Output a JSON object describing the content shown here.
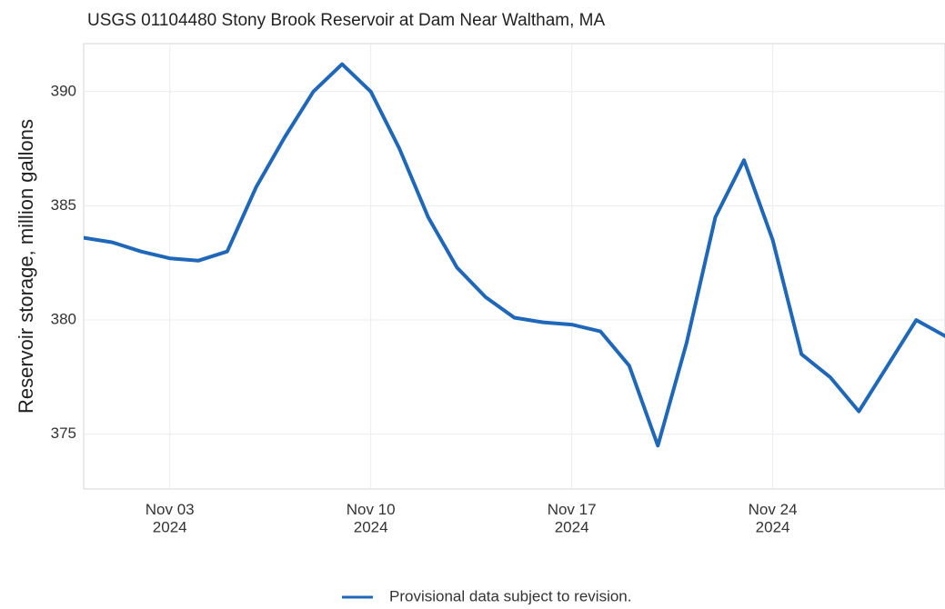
{
  "chart_data": {
    "type": "line",
    "title": "USGS 01104480 Stony Brook Reservoir at Dam Near Waltham, MA",
    "y_label": "Reservoir storage, million gallons",
    "x": [
      "2024-10-31",
      "2024-11-01",
      "2024-11-02",
      "2024-11-03",
      "2024-11-04",
      "2024-11-05",
      "2024-11-06",
      "2024-11-07",
      "2024-11-08",
      "2024-11-09",
      "2024-11-10",
      "2024-11-11",
      "2024-11-12",
      "2024-11-13",
      "2024-11-14",
      "2024-11-15",
      "2024-11-16",
      "2024-11-17",
      "2024-11-18",
      "2024-11-19",
      "2024-11-20",
      "2024-11-21",
      "2024-11-22",
      "2024-11-23",
      "2024-11-24",
      "2024-11-25",
      "2024-11-26",
      "2024-11-27",
      "2024-11-28",
      "2024-11-29",
      "2024-11-30"
    ],
    "series": [
      {
        "name": "Provisional data subject to revision.",
        "color": "#1f67b9",
        "values": [
          383.6,
          383.4,
          383.0,
          382.7,
          382.6,
          383.0,
          385.8,
          388.0,
          390.0,
          391.2,
          390.0,
          387.5,
          384.5,
          382.3,
          381.0,
          380.1,
          379.9,
          379.8,
          379.5,
          378.0,
          374.5,
          379.0,
          384.5,
          387.0,
          383.5,
          378.5,
          377.5,
          376.0,
          378.0,
          380.0,
          379.3
        ]
      }
    ],
    "xlim": [
      "2024-10-31",
      "2024-11-30"
    ],
    "xticks": [
      {
        "value": "2024-11-03",
        "label": "Nov 03\n2024"
      },
      {
        "value": "2024-11-10",
        "label": "Nov 10\n2024"
      },
      {
        "value": "2024-11-17",
        "label": "Nov 17\n2024"
      },
      {
        "value": "2024-11-24",
        "label": "Nov 24\n2024"
      }
    ],
    "ylim": [
      372.6,
      392.1
    ],
    "yticks": [
      375,
      380,
      385,
      390
    ],
    "grid": true,
    "legend": "bottom"
  }
}
